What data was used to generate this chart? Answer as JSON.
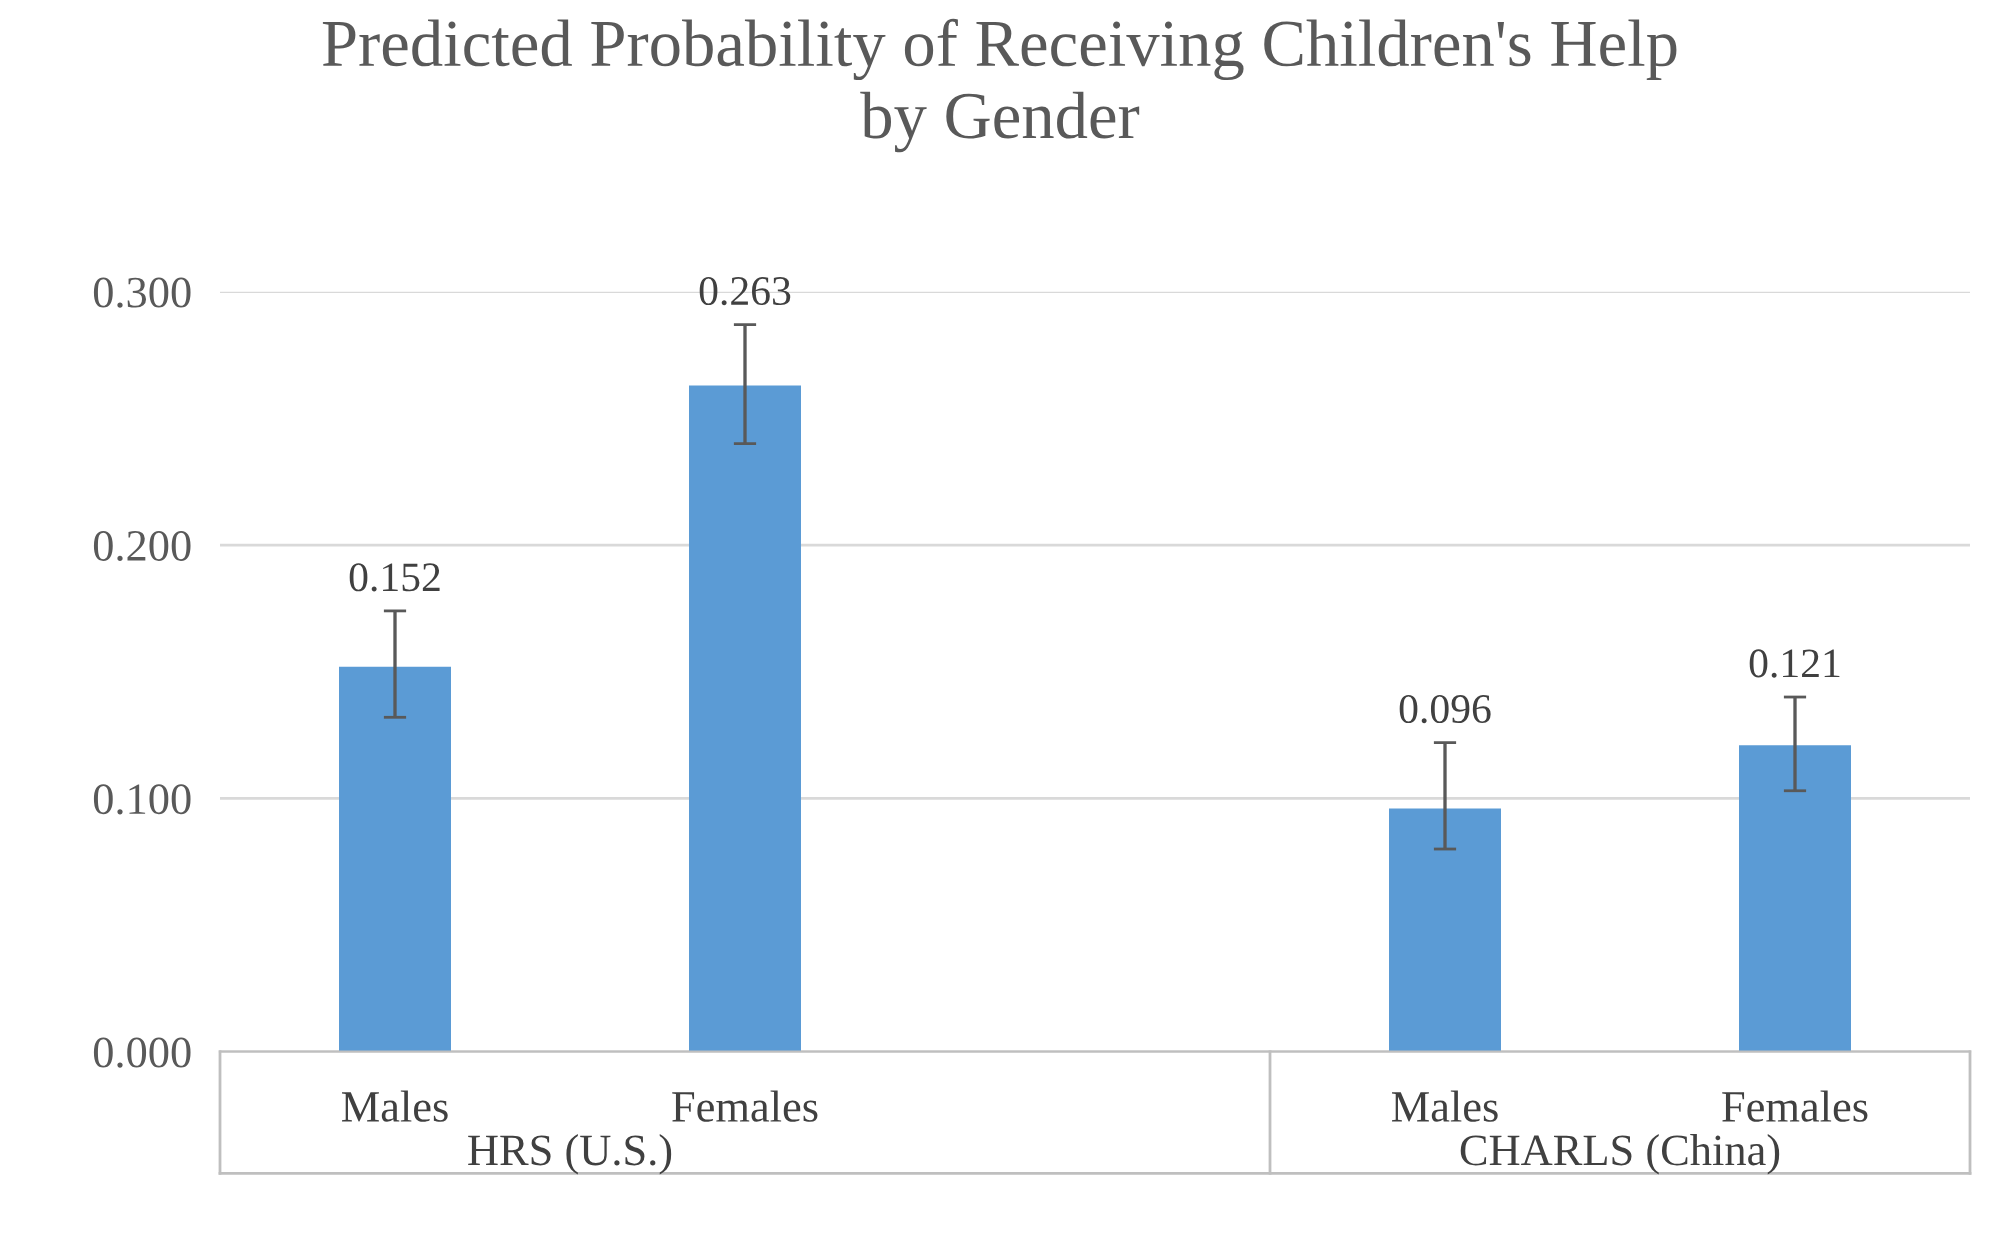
{
  "chart_data": {
    "type": "bar",
    "title": "Predicted Probability of Receiving Children's Help\nby Gender",
    "categories": [
      "Males",
      "Females",
      null,
      "Males",
      "Females"
    ],
    "values": [
      0.152,
      0.263,
      null,
      0.096,
      0.121
    ],
    "errors": [
      [
        0.132,
        0.174
      ],
      [
        0.24,
        0.287
      ],
      null,
      [
        0.08,
        0.122
      ],
      [
        0.103,
        0.14
      ]
    ],
    "value_labels": [
      "0.152",
      "0.263",
      null,
      "0.096",
      "0.121"
    ],
    "color": "#5b9bd5",
    "ylim": [
      0,
      0.3
    ],
    "yticks": [
      {
        "value": 0,
        "label": "0.000"
      },
      {
        "value": 0.1,
        "label": "0.100"
      },
      {
        "value": 0.2,
        "label": "0.200"
      },
      {
        "value": 0.3,
        "label": "0.300"
      }
    ],
    "grid": "y",
    "annotations": [
      "HRS (U.S.)",
      "CHARLS (China)"
    ]
  }
}
